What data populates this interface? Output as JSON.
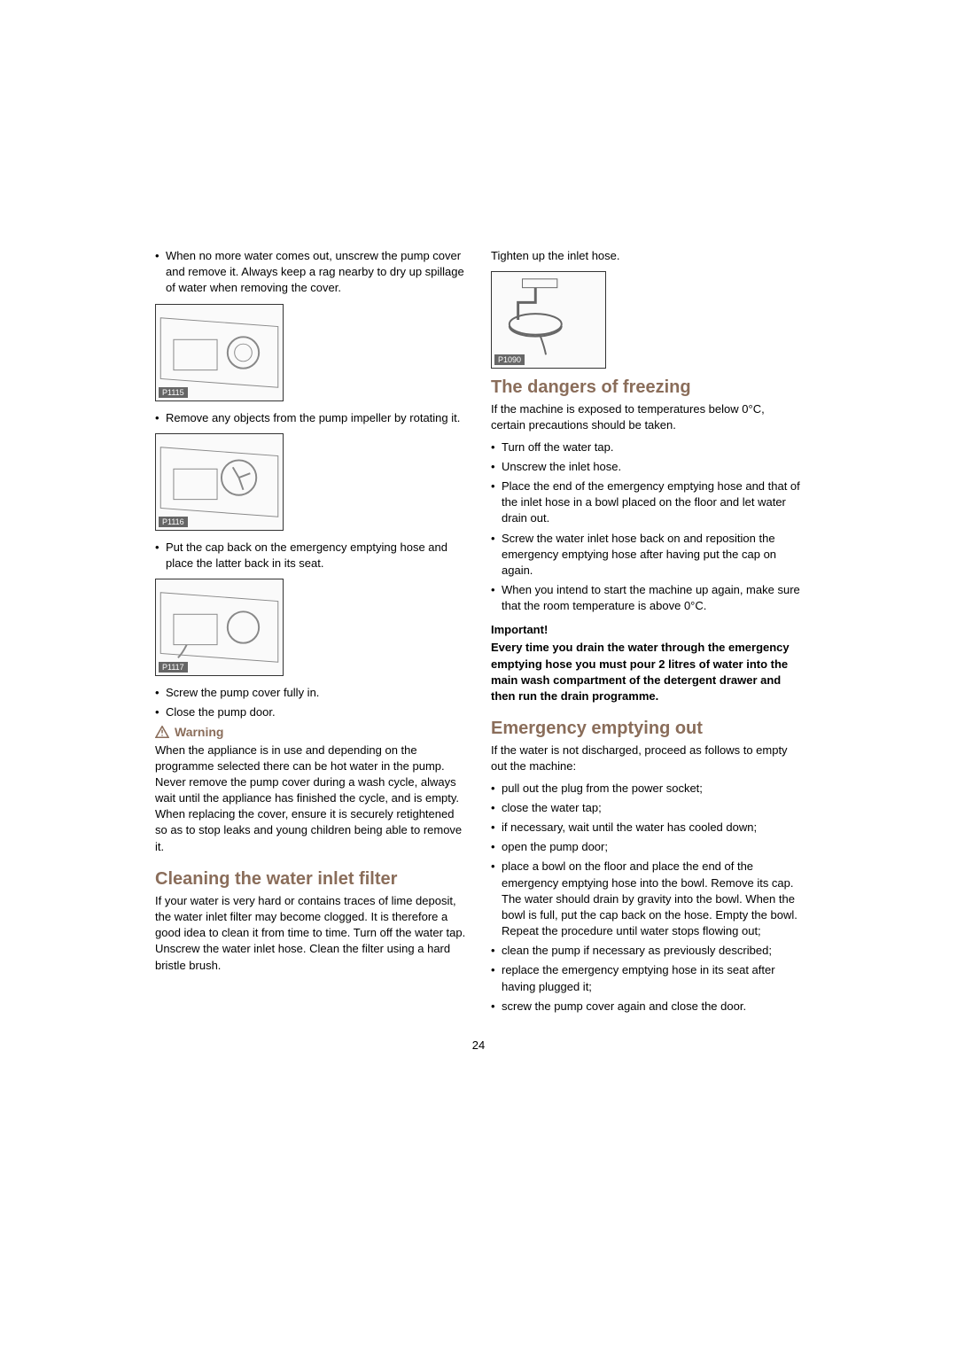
{
  "colors": {
    "text": "#000000",
    "accent": "#8a6d5a",
    "bg": "#ffffff",
    "diagramBorder": "#333333",
    "diagramFill": "#fafafa",
    "labelBg": "#666666"
  },
  "pageNumber": "24",
  "left": {
    "bullets1": [
      "When no more water comes out, unscrew the pump cover and remove it. Always keep a rag nearby to dry up spillage of water when removing the cover."
    ],
    "diagram1Label": "P1115",
    "bullets2": [
      "Remove any objects from the pump impeller by rotating it."
    ],
    "diagram2Label": "P1116",
    "bullets3": [
      "Put the cap back on the emergency emptying hose and place the latter back in its seat."
    ],
    "diagram3Label": "P1117",
    "bullets4": [
      "Screw the pump cover fully in.",
      "Close the pump door."
    ],
    "warningTitle": "Warning",
    "warningPara": "When the appliance is in use and depending on the programme selected there can be hot water in the pump. Never remove the pump cover during a wash cycle, always wait until the appliance has finished the cycle, and is empty. When replacing the cover, ensure it is securely retightened so as to stop leaks and young children being able to remove it.",
    "cleaningTitle": "Cleaning the water inlet filter",
    "cleaningPara": "If your water is very hard or contains traces of lime deposit, the water inlet filter may become clogged. It is therefore a good idea to clean it from time to time. Turn off the water tap. Unscrew the water inlet hose. Clean the filter using a hard bristle brush."
  },
  "right": {
    "topPara": "Tighten up the inlet hose.",
    "diagramTopLabel": "P1090",
    "freezeTitle": "The dangers of freezing",
    "freezePara": "If the machine is exposed to temperatures below 0°C, certain precautions should be taken.",
    "freezeBullets": [
      "Turn off the water tap.",
      "Unscrew the inlet hose.",
      "Place the end of the emergency emptying hose and that of the inlet hose in a bowl placed on the floor and let water drain out.",
      "Screw the water inlet hose back on and reposition the emergency emptying hose after having put the cap on again.",
      "When you intend to start the machine up again, make sure that the room temperature is above 0°C."
    ],
    "importantLabel": "Important!",
    "importantPara": "Every time you drain the water through the emergency emptying hose you must pour 2 litres of water into the main wash compartment of the detergent drawer and then run the drain programme.",
    "emergencyTitle": "Emergency emptying out",
    "emergencyPara": "If the water is not discharged, proceed as follows to empty out the machine:",
    "emergencyBullets": [
      "pull out the plug from the power socket;",
      "close the water tap;",
      "if necessary, wait until the water has cooled down;",
      "open the pump door;",
      "place a bowl on the floor and place the end of the emergency emptying hose into the bowl. Remove its cap. The water should drain by gravity into the bowl. When the bowl is full, put the cap back on the hose. Empty the bowl. Repeat the procedure until water stops flowing out;",
      "clean the pump if necessary as previously described;",
      "replace the emergency emptying hose in its seat after having plugged it;",
      "screw the pump cover again and close the door."
    ]
  }
}
